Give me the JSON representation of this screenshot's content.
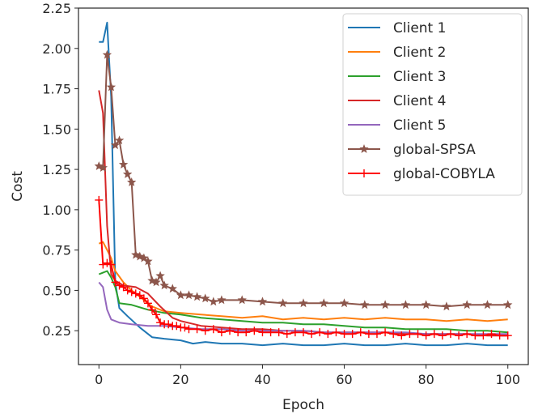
{
  "chart_data": {
    "type": "line",
    "title": "",
    "xlabel": "Epoch",
    "ylabel": "Cost",
    "xlim": [
      -5,
      105
    ],
    "ylim": [
      0.04,
      2.25
    ],
    "xticks": [
      0,
      20,
      40,
      60,
      80,
      100
    ],
    "yticks": [
      0.25,
      0.5,
      0.75,
      1.0,
      1.25,
      1.5,
      1.75,
      2.0,
      2.25
    ],
    "ytick_labels": [
      "0.25",
      "0.50",
      "0.75",
      "1.00",
      "1.25",
      "1.50",
      "1.75",
      "2.00",
      "2.25"
    ],
    "xtick_labels": [
      "0",
      "20",
      "40",
      "60",
      "80",
      "100"
    ],
    "grid": false,
    "legend_position": "top-right",
    "series": [
      {
        "name": "Client 1",
        "color": "#1f77b4",
        "marker": "none",
        "x": [
          0,
          1,
          2,
          3,
          4,
          5,
          7,
          10,
          13,
          16,
          20,
          23,
          26,
          30,
          35,
          40,
          45,
          50,
          55,
          60,
          65,
          70,
          75,
          80,
          85,
          90,
          95,
          100
        ],
        "y": [
          2.04,
          2.04,
          2.16,
          1.7,
          0.55,
          0.39,
          0.34,
          0.27,
          0.21,
          0.2,
          0.19,
          0.17,
          0.18,
          0.17,
          0.17,
          0.16,
          0.17,
          0.16,
          0.16,
          0.17,
          0.16,
          0.16,
          0.17,
          0.16,
          0.16,
          0.17,
          0.16,
          0.16
        ]
      },
      {
        "name": "Client 2",
        "color": "#ff7f0e",
        "marker": "none",
        "x": [
          0,
          1,
          2,
          3,
          4,
          6,
          8,
          10,
          13,
          16,
          20,
          25,
          30,
          35,
          40,
          45,
          50,
          55,
          60,
          65,
          70,
          75,
          80,
          85,
          90,
          95,
          100
        ],
        "y": [
          0.79,
          0.8,
          0.75,
          0.7,
          0.62,
          0.55,
          0.5,
          0.46,
          0.4,
          0.37,
          0.36,
          0.35,
          0.34,
          0.33,
          0.34,
          0.32,
          0.33,
          0.32,
          0.33,
          0.32,
          0.33,
          0.32,
          0.32,
          0.31,
          0.32,
          0.31,
          0.32
        ]
      },
      {
        "name": "Client 3",
        "color": "#2ca02c",
        "marker": "none",
        "x": [
          0,
          2,
          3,
          4,
          5,
          8,
          12,
          16,
          20,
          25,
          30,
          35,
          40,
          45,
          50,
          55,
          60,
          65,
          70,
          75,
          80,
          85,
          90,
          95,
          100
        ],
        "y": [
          0.6,
          0.62,
          0.58,
          0.52,
          0.42,
          0.41,
          0.38,
          0.36,
          0.35,
          0.33,
          0.32,
          0.31,
          0.3,
          0.3,
          0.29,
          0.29,
          0.28,
          0.27,
          0.27,
          0.26,
          0.26,
          0.26,
          0.25,
          0.25,
          0.24
        ]
      },
      {
        "name": "Client 4",
        "color": "#d62728",
        "marker": "none",
        "x": [
          0,
          1,
          2,
          3,
          4,
          6,
          9,
          12,
          15,
          18,
          20,
          25,
          30,
          35,
          40,
          45,
          50,
          55,
          60,
          65,
          70,
          75,
          80,
          85,
          90,
          95,
          100
        ],
        "y": [
          1.74,
          1.6,
          0.9,
          0.6,
          0.56,
          0.53,
          0.52,
          0.48,
          0.4,
          0.33,
          0.31,
          0.28,
          0.27,
          0.26,
          0.26,
          0.25,
          0.25,
          0.24,
          0.24,
          0.24,
          0.24,
          0.23,
          0.23,
          0.23,
          0.23,
          0.22,
          0.22
        ]
      },
      {
        "name": "Client 5",
        "color": "#9467bd",
        "marker": "none",
        "x": [
          0,
          1,
          2,
          3,
          5,
          8,
          12,
          16,
          20,
          25,
          30,
          35,
          40,
          45,
          50,
          55,
          60,
          65,
          70,
          75,
          80,
          85,
          90,
          95,
          100
        ],
        "y": [
          0.55,
          0.52,
          0.38,
          0.32,
          0.3,
          0.29,
          0.28,
          0.28,
          0.27,
          0.26,
          0.26,
          0.25,
          0.25,
          0.25,
          0.25,
          0.24,
          0.24,
          0.24,
          0.24,
          0.24,
          0.23,
          0.23,
          0.23,
          0.23,
          0.23
        ]
      },
      {
        "name": "global-SPSA",
        "color": "#8c564b",
        "marker": "star",
        "x": [
          0,
          1,
          2,
          3,
          4,
          5,
          6,
          7,
          8,
          9,
          10,
          11,
          12,
          13,
          14,
          15,
          16,
          18,
          20,
          22,
          24,
          26,
          28,
          30,
          35,
          40,
          45,
          50,
          55,
          60,
          65,
          70,
          75,
          80,
          85,
          90,
          95,
          100
        ],
        "y": [
          1.27,
          1.26,
          1.96,
          1.76,
          1.4,
          1.43,
          1.28,
          1.22,
          1.17,
          0.72,
          0.71,
          0.7,
          0.68,
          0.56,
          0.55,
          0.59,
          0.53,
          0.51,
          0.47,
          0.47,
          0.46,
          0.45,
          0.43,
          0.44,
          0.44,
          0.43,
          0.42,
          0.42,
          0.42,
          0.42,
          0.41,
          0.41,
          0.41,
          0.41,
          0.4,
          0.41,
          0.41,
          0.41
        ]
      },
      {
        "name": "global-COBYLA",
        "color": "#ff0000",
        "marker": "plus",
        "x": [
          0,
          1,
          2,
          3,
          4,
          5,
          6,
          7,
          8,
          9,
          10,
          11,
          12,
          13,
          14,
          15,
          16,
          17,
          18,
          19,
          20,
          21,
          22,
          24,
          26,
          28,
          30,
          32,
          34,
          36,
          38,
          40,
          42,
          44,
          46,
          48,
          50,
          52,
          54,
          56,
          58,
          60,
          62,
          64,
          66,
          68,
          70,
          72,
          74,
          76,
          78,
          80,
          82,
          84,
          86,
          88,
          90,
          92,
          94,
          96,
          98,
          100
        ],
        "y": [
          1.06,
          0.66,
          0.67,
          0.66,
          0.55,
          0.53,
          0.52,
          0.5,
          0.49,
          0.48,
          0.47,
          0.45,
          0.42,
          0.38,
          0.35,
          0.3,
          0.29,
          0.29,
          0.28,
          0.28,
          0.27,
          0.27,
          0.26,
          0.26,
          0.25,
          0.26,
          0.24,
          0.25,
          0.24,
          0.24,
          0.25,
          0.24,
          0.24,
          0.24,
          0.23,
          0.24,
          0.24,
          0.23,
          0.24,
          0.23,
          0.24,
          0.23,
          0.23,
          0.24,
          0.23,
          0.23,
          0.24,
          0.23,
          0.22,
          0.23,
          0.23,
          0.22,
          0.23,
          0.22,
          0.23,
          0.22,
          0.23,
          0.22,
          0.22,
          0.23,
          0.22,
          0.22
        ]
      }
    ]
  }
}
